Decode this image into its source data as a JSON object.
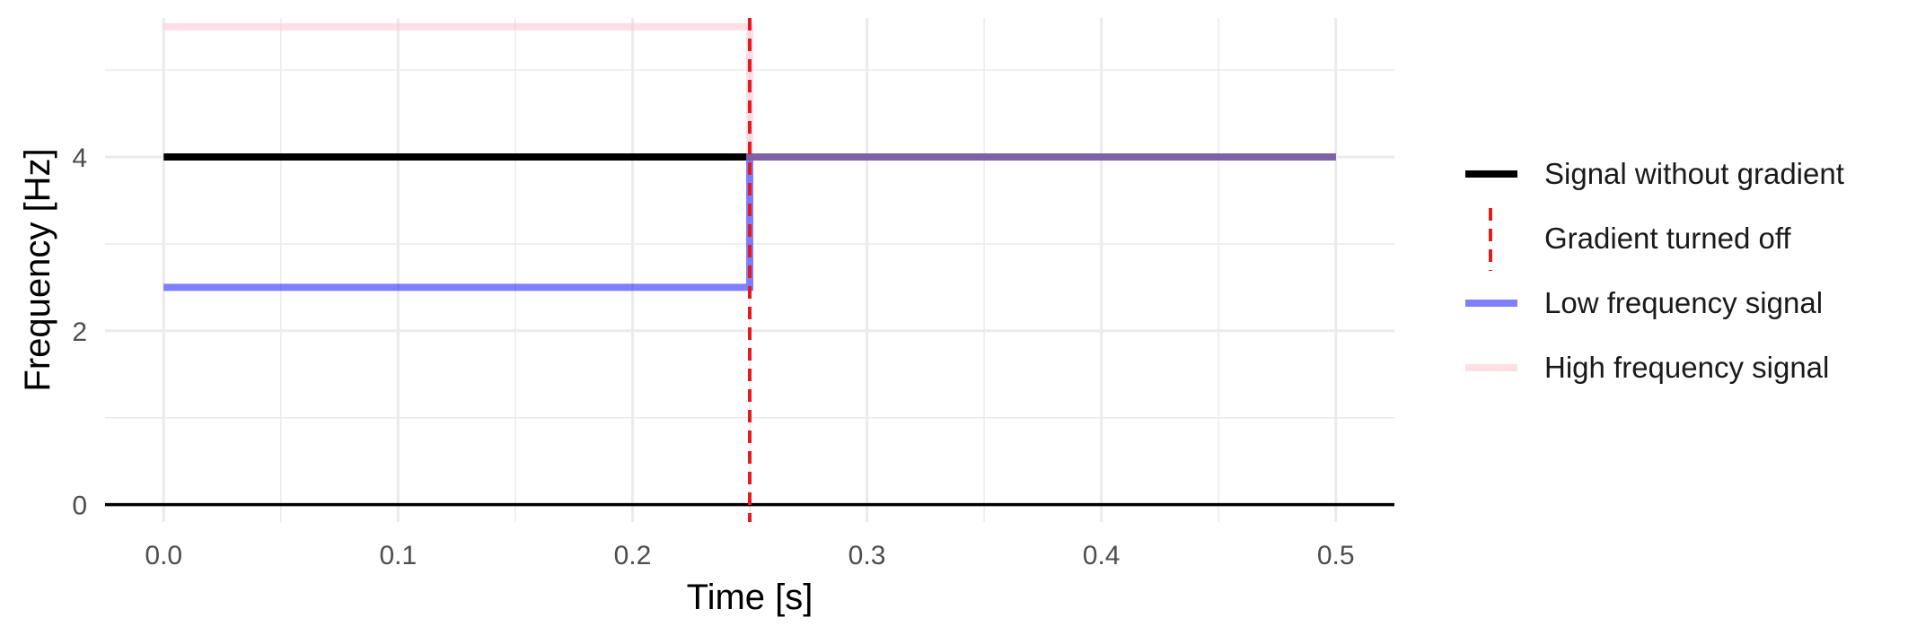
{
  "chart_data": {
    "type": "line",
    "xlabel": "Time [s]",
    "ylabel": "Frequency [Hz]",
    "xlim": [
      -0.025,
      0.525
    ],
    "ylim": [
      -0.2,
      5.6
    ],
    "x_ticks": [
      0.0,
      0.1,
      0.2,
      0.3,
      0.4,
      0.5
    ],
    "x_tick_labels": [
      "0.0",
      "0.1",
      "0.2",
      "0.3",
      "0.4",
      "0.5"
    ],
    "y_ticks": [
      0,
      2,
      4
    ],
    "y_tick_labels": [
      "0",
      "2",
      "4"
    ],
    "grid": true,
    "legend_position": "right",
    "zero_line": 0,
    "series": [
      {
        "name": "Signal without gradient",
        "color": "#000000",
        "style": "solid",
        "x": [
          0,
          0.5
        ],
        "y": [
          4,
          4
        ]
      },
      {
        "name": "Gradient turned off",
        "color": "#e41a1c",
        "style": "dashed",
        "vline_x": 0.25
      },
      {
        "name": "Low frequency signal",
        "color": "#0000ff",
        "opacity": 0.5,
        "style": "solid",
        "x": [
          0,
          0.25,
          0.25,
          0.5
        ],
        "y": [
          2.5,
          2.5,
          4,
          4
        ]
      },
      {
        "name": "High frequency signal",
        "color": "#ffc0cb",
        "opacity": 0.5,
        "style": "solid",
        "x": [
          0,
          0.25,
          0.25,
          0.5
        ],
        "y": [
          5.5,
          5.5,
          4,
          4
        ]
      }
    ]
  }
}
